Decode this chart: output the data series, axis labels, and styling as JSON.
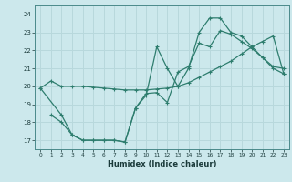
{
  "background_color": "#cce8ec",
  "grid_color": "#b8d8dc",
  "line_color": "#2e7d6e",
  "xlabel": "Humidex (Indice chaleur)",
  "ylim": [
    16.5,
    24.5
  ],
  "xlim": [
    -0.5,
    23.5
  ],
  "yticks": [
    17,
    18,
    19,
    20,
    21,
    22,
    23,
    24
  ],
  "xticks": [
    0,
    1,
    2,
    3,
    4,
    5,
    6,
    7,
    8,
    9,
    10,
    11,
    12,
    13,
    14,
    15,
    16,
    17,
    18,
    19,
    20,
    21,
    22,
    23
  ],
  "series": [
    {
      "x": [
        0,
        1,
        2,
        3,
        4,
        5,
        6,
        7,
        8,
        9,
        10,
        11,
        12,
        13,
        14,
        15,
        16,
        17,
        18,
        19,
        20,
        21,
        22,
        23
      ],
      "y": [
        19.9,
        20.3,
        20.0,
        20.0,
        20.0,
        19.95,
        19.9,
        19.85,
        19.8,
        19.8,
        19.8,
        19.85,
        19.9,
        20.0,
        20.2,
        20.5,
        20.8,
        21.1,
        21.4,
        21.8,
        22.2,
        22.5,
        22.8,
        20.7
      ]
    },
    {
      "x": [
        1,
        2,
        3,
        4,
        5,
        6,
        7,
        8,
        9,
        10,
        11,
        12,
        13,
        14,
        15,
        16,
        17,
        18,
        19,
        20,
        21,
        22,
        23
      ],
      "y": [
        18.4,
        18.0,
        17.3,
        17.0,
        17.0,
        17.0,
        17.0,
        16.9,
        18.8,
        19.5,
        22.2,
        21.0,
        20.0,
        21.0,
        23.0,
        23.8,
        23.8,
        23.0,
        22.8,
        22.2,
        21.6,
        21.1,
        21.0
      ]
    },
    {
      "x": [
        0,
        2,
        3,
        4,
        5,
        6,
        7,
        8,
        9,
        10,
        11,
        12,
        13,
        14,
        15,
        16,
        17,
        18,
        19,
        20,
        21,
        22,
        23
      ],
      "y": [
        19.9,
        18.4,
        17.3,
        17.0,
        17.0,
        17.0,
        17.0,
        16.9,
        18.8,
        19.6,
        19.65,
        19.1,
        20.8,
        21.1,
        22.4,
        22.2,
        23.1,
        22.9,
        22.5,
        22.1,
        21.6,
        21.0,
        20.7
      ]
    }
  ]
}
